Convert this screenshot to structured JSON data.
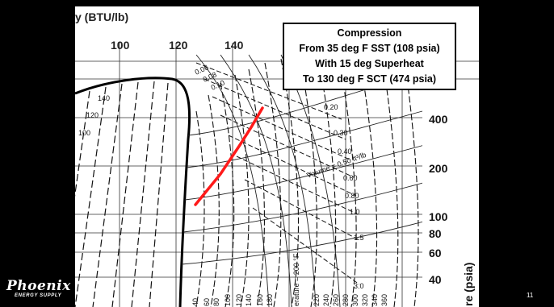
{
  "chart": {
    "top_axis_title": "y (BTU/lb)",
    "top_ticks": [
      "100",
      "120",
      "140"
    ],
    "right_axis_title": "re (psia)",
    "right_ticks": [
      "400",
      "200",
      "100",
      "80",
      "60",
      "40"
    ],
    "left_enthalpy_labels": [
      "140",
      "120",
      "100"
    ],
    "quality_labels": [
      "0.06",
      "0.08",
      "0.10"
    ],
    "volume_labels": [
      "0.20",
      "0.30",
      "0.40",
      "0.60",
      "0.80",
      "1.0",
      "1.5",
      "3.0"
    ],
    "volume_label": "Volume = 0.50 ft³/lb",
    "temperature_label": "erature = 200 °F",
    "temp_curve_labels": [
      "40",
      "60",
      "80",
      "100",
      "120",
      "140",
      "160",
      "180",
      "220",
      "240",
      "260",
      "280",
      "300",
      "320",
      "340",
      "360"
    ],
    "process_line_color": "#ff1a1a"
  },
  "callout": {
    "title": "Compression",
    "line1": "From 35 deg F SST (108 psia)",
    "line2": "With 15 deg Superheat",
    "line3": "To 130 deg F SCT (474 psia)"
  },
  "footer": {
    "brand": "Phoenix",
    "brand_sub": "ENERGY SUPPLY",
    "page_number": "11"
  }
}
